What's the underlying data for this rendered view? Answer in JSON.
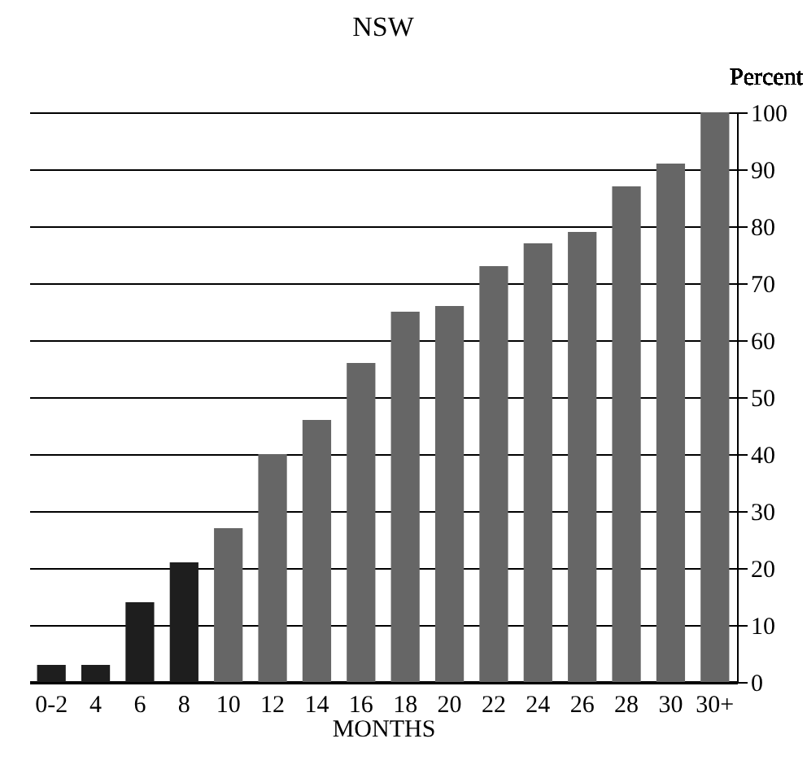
{
  "chart_data": {
    "type": "bar",
    "title": "NSW",
    "xlabel": "MONTHS",
    "ylabel": "Percent",
    "categories": [
      "0-2",
      "4",
      "6",
      "8",
      "10",
      "12",
      "14",
      "16",
      "18",
      "20",
      "22",
      "24",
      "26",
      "28",
      "30",
      "30+"
    ],
    "values": [
      3,
      3,
      14,
      21,
      27,
      40,
      46,
      56,
      65,
      66,
      73,
      77,
      79,
      87,
      91,
      100
    ],
    "colors": [
      "#1e1e1e",
      "#1e1e1e",
      "#1e1e1e",
      "#1e1e1e",
      "#666666",
      "#666666",
      "#666666",
      "#666666",
      "#666666",
      "#666666",
      "#666666",
      "#666666",
      "#666666",
      "#666666",
      "#666666",
      "#666666"
    ],
    "ylim": [
      0,
      100
    ],
    "yticks": [
      0,
      10,
      20,
      30,
      40,
      50,
      60,
      70,
      80,
      90,
      100
    ],
    "grid": "y"
  }
}
